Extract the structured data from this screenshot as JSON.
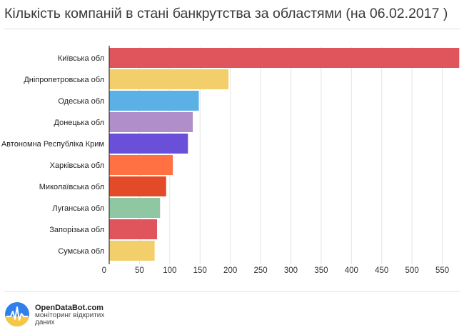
{
  "title": "Кількість компаній в стані банкрутства за областями (на 06.02.2017 )",
  "footer": {
    "brand": "OpenDataBot.com",
    "tagline": "моніторинг відкритих даних",
    "logo_icon": "opendatabot-logo-icon"
  },
  "chart_data": {
    "type": "bar",
    "orientation": "horizontal",
    "title": "Кількість компаній в стані банкрутства за областями (на 06.02.2017 )",
    "xlabel": "",
    "ylabel": "",
    "xlim": [
      0,
      580
    ],
    "x_ticks": [
      0,
      50,
      100,
      150,
      200,
      250,
      300,
      350,
      400,
      450,
      500,
      550
    ],
    "grid": true,
    "legend": "none",
    "categories": [
      "Київська обл",
      "Дніпропетровська обл",
      "Одеська обл",
      "Донецька обл",
      "Автономна Республіка Крим",
      "Харківська обл",
      "Миколаївська обл",
      "Луганська обл",
      "Запорізька обл",
      "Сумська обл"
    ],
    "values": [
      578,
      197,
      148,
      138,
      130,
      105,
      94,
      84,
      79,
      75
    ],
    "colors": [
      "#e0545b",
      "#f3cf6b",
      "#5bb1e6",
      "#b08ec9",
      "#6a4fd8",
      "#ff7043",
      "#e34a28",
      "#90c7a3",
      "#e0545b",
      "#f3cf6b"
    ]
  }
}
